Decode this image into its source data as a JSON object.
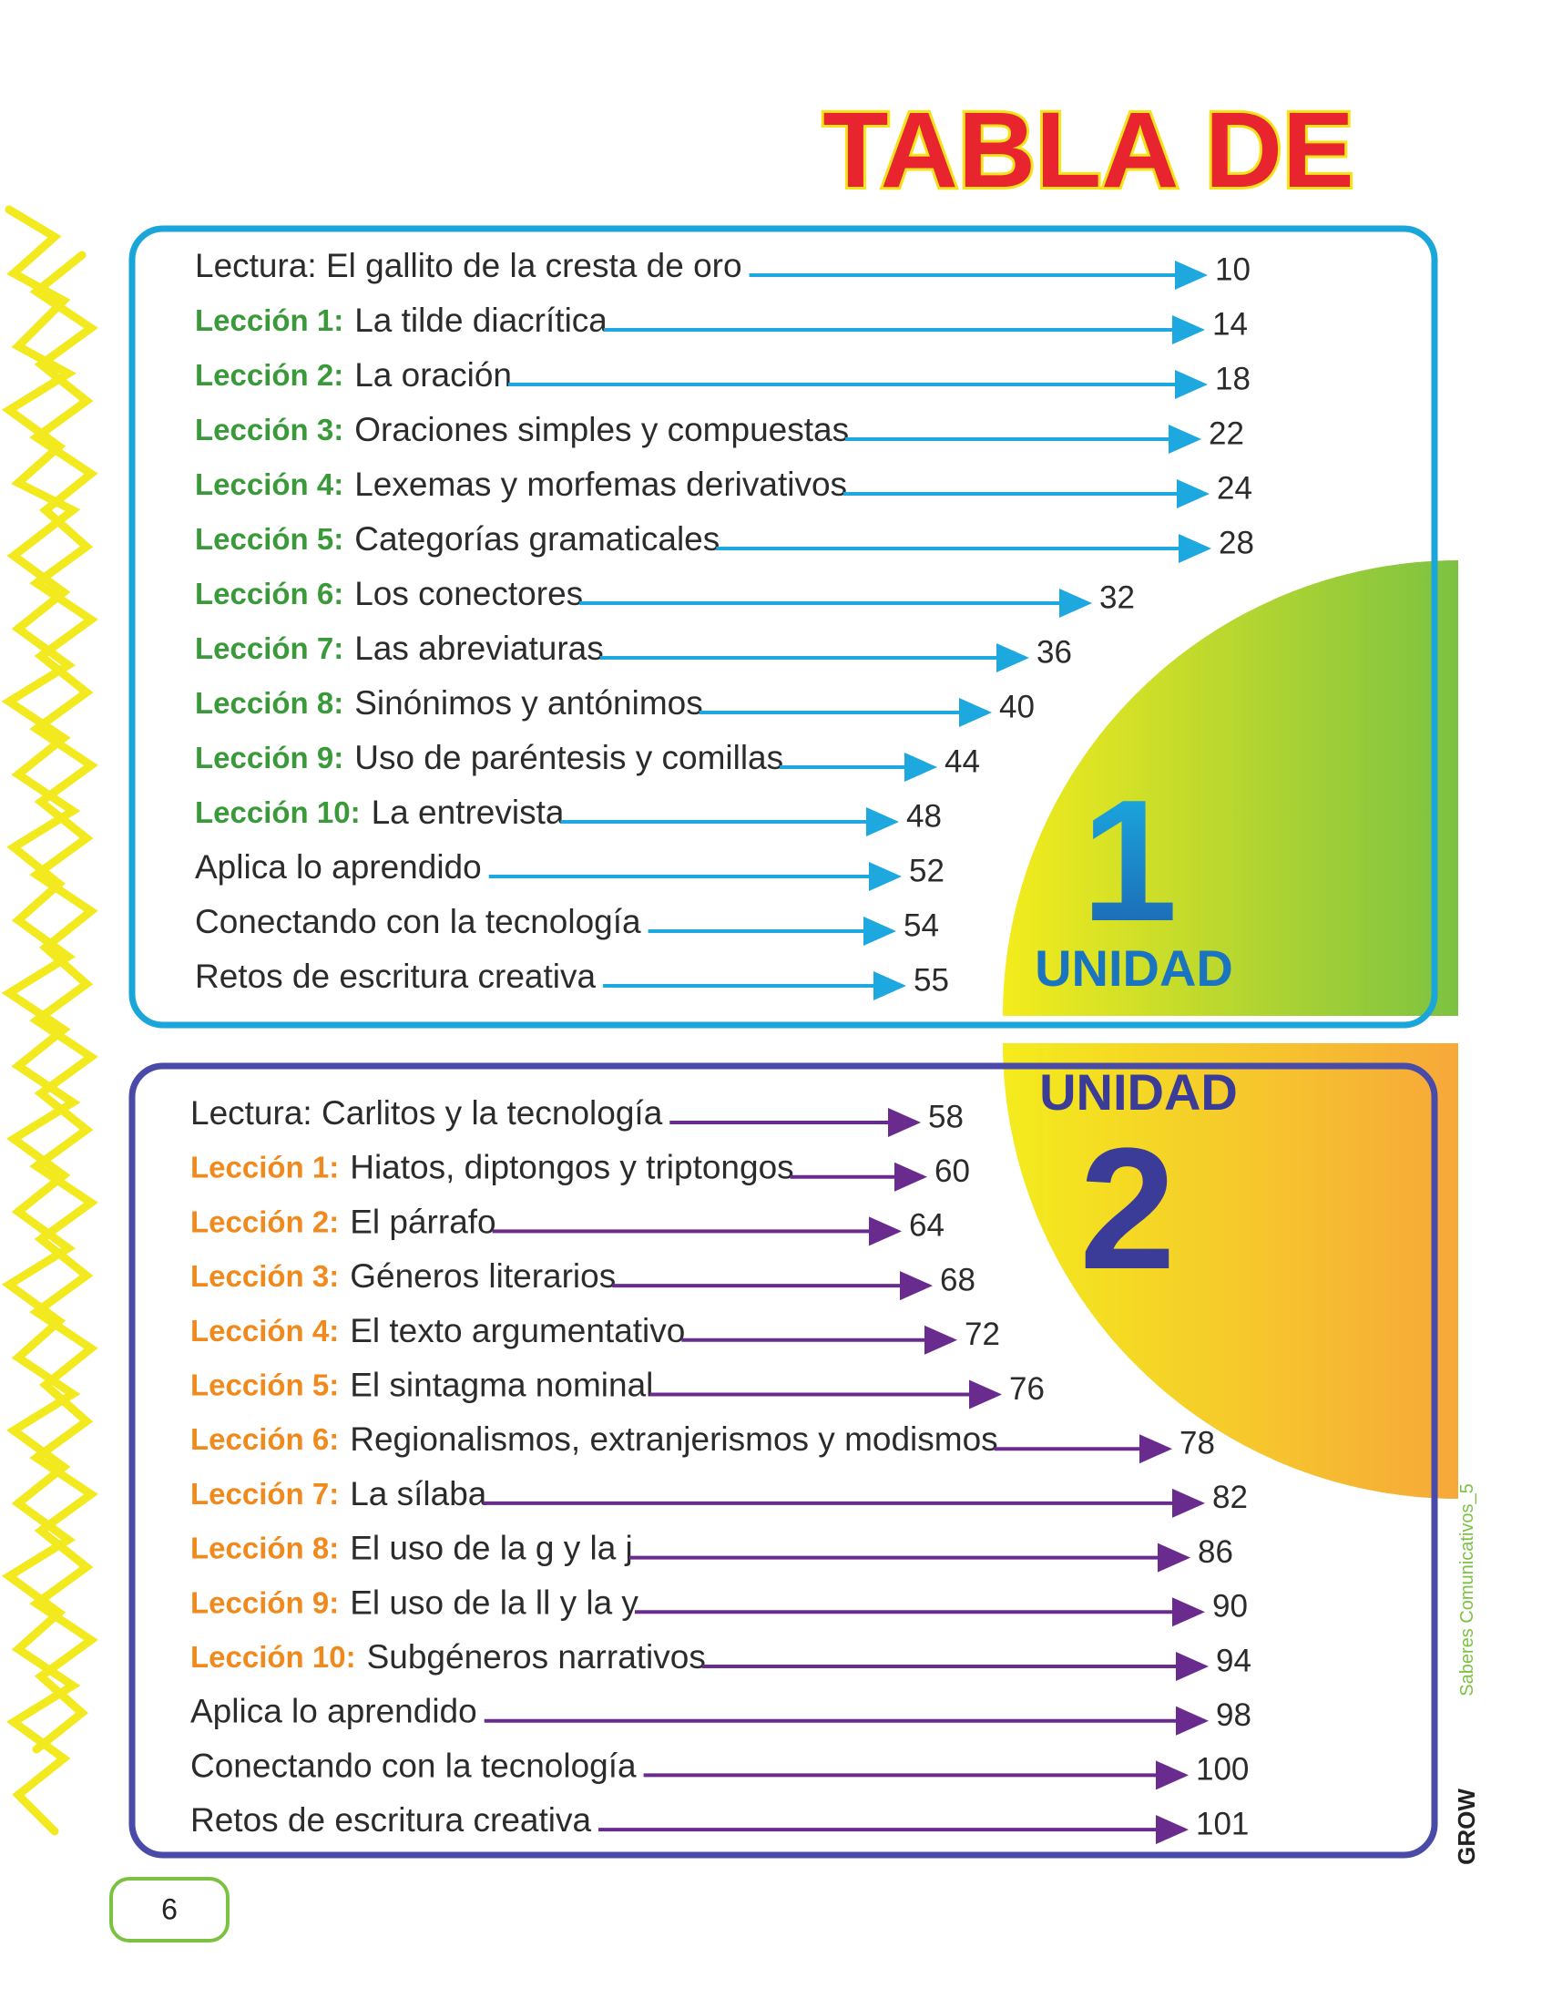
{
  "header": {
    "title": "TABLA DE"
  },
  "units": [
    {
      "label": "UNIDAD",
      "number": "1",
      "entries": [
        {
          "text": "Lectura: El gallito de la cresta de oro",
          "page": 10
        },
        {
          "lesson": "Lección 1:",
          "text": "La tilde diacrítica",
          "page": 14
        },
        {
          "lesson": "Lección 2:",
          "text": "La oración",
          "page": 18
        },
        {
          "lesson": "Lección 3:",
          "text": "Oraciones simples y compuestas",
          "page": 22
        },
        {
          "lesson": "Lección 4:",
          "text": "Lexemas y morfemas derivativos",
          "page": 24
        },
        {
          "lesson": "Lección 5:",
          "text": "Categorías gramaticales",
          "page": 28
        },
        {
          "lesson": "Lección 6:",
          "text": "Los conectores",
          "page": 32
        },
        {
          "lesson": "Lección 7:",
          "text": "Las abreviaturas",
          "page": 36
        },
        {
          "lesson": "Lección 8:",
          "text": "Sinónimos y antónimos",
          "page": 40
        },
        {
          "lesson": "Lección 9:",
          "text": "Uso de paréntesis y comillas",
          "page": 44
        },
        {
          "lesson": "Lección 10:",
          "text": "La entrevista",
          "page": 48
        },
        {
          "text": "Aplica lo aprendido",
          "page": 52
        },
        {
          "text": "Conectando con la tecnología",
          "page": 54
        },
        {
          "text": "Retos de escritura creativa",
          "page": 55
        }
      ]
    },
    {
      "label": "UNIDAD",
      "number": "2",
      "entries": [
        {
          "text": "Lectura: Carlitos y la tecnología",
          "page": 58
        },
        {
          "lesson": "Lección 1:",
          "text": "Hiatos, diptongos y triptongos",
          "page": 60
        },
        {
          "lesson": "Lección 2:",
          "text": "El párrafo",
          "page": 64
        },
        {
          "lesson": "Lección 3:",
          "text": "Géneros literarios",
          "page": 68
        },
        {
          "lesson": "Lección 4:",
          "text": "El texto argumentativo",
          "page": 72
        },
        {
          "lesson": "Lección 5:",
          "text": "El sintagma nominal",
          "page": 76
        },
        {
          "lesson": "Lección 6:",
          "text": "Regionalismos, extranjerismos y modismos",
          "page": 78
        },
        {
          "lesson": "Lección 7:",
          "text": "La sílaba",
          "page": 82
        },
        {
          "lesson": "Lección 8:",
          "text": "El uso de la g y la j",
          "page": 86
        },
        {
          "lesson": "Lección 9:",
          "text": "El uso de la ll y la y",
          "page": 90
        },
        {
          "lesson": "Lección 10:",
          "text": "Subgéneros narrativos",
          "page": 94
        },
        {
          "text": "Aplica lo aprendido",
          "page": 98
        },
        {
          "text": "Conectando con la tecnología",
          "page": 100
        },
        {
          "text": "Retos de escritura creativa",
          "page": 101
        }
      ]
    }
  ],
  "footer": {
    "series": "Saberes Comunicativos_5",
    "brand": "GROW",
    "page_number": 6
  }
}
